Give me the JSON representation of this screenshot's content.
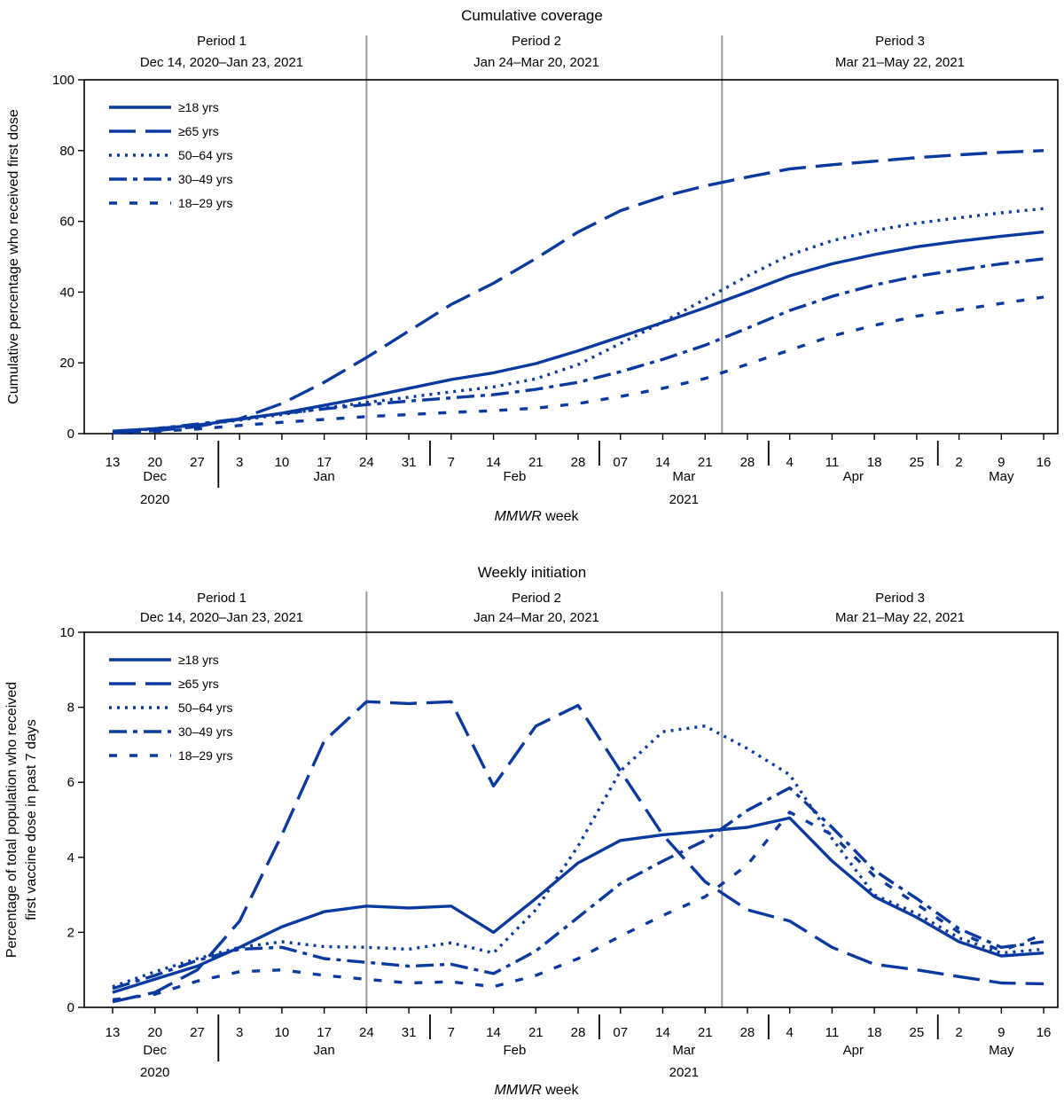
{
  "colors": {
    "series": "#0a3aa0",
    "axis": "#000000",
    "period_line": "#999999"
  },
  "periods": [
    {
      "name": "Period 1",
      "range": "Dec 14, 2020–Jan 23, 2021"
    },
    {
      "name": "Period 2",
      "range": "Jan 24–Mar 20, 2021"
    },
    {
      "name": "Period 3",
      "range": "Mar 21–May 22, 2021"
    }
  ],
  "xaxis": {
    "week_labels": [
      "13",
      "20",
      "27",
      "3",
      "10",
      "17",
      "24",
      "31",
      "7",
      "14",
      "21",
      "28",
      "07",
      "14",
      "21",
      "28",
      "4",
      "11",
      "18",
      "25",
      "2",
      "9",
      "16"
    ],
    "months": [
      {
        "label": "Dec",
        "first": 0,
        "last": 2
      },
      {
        "label": "Jan",
        "first": 3,
        "last": 7
      },
      {
        "label": "Feb",
        "first": 8,
        "last": 11
      },
      {
        "label": "Mar",
        "first": 12,
        "last": 15
      },
      {
        "label": "Apr",
        "first": 16,
        "last": 19
      },
      {
        "label": "May",
        "first": 20,
        "last": 22
      }
    ],
    "years": [
      {
        "label": "2020",
        "center": 1
      },
      {
        "label": "2021",
        "center": 13.5
      }
    ],
    "title_italic": "MMWR",
    "title_rest": " week"
  },
  "chart_data": [
    {
      "type": "line",
      "title": "Cumulative coverage",
      "ylabel": "Cumulative percentage who received first dose",
      "ylim": [
        0,
        100
      ],
      "yticks": [
        0,
        20,
        40,
        60,
        80,
        100
      ],
      "period_boundaries": [
        6,
        14.4
      ],
      "legend": "top-left",
      "series": [
        {
          "name": "≥18 yrs",
          "style": "solid",
          "values": [
            0.7,
            1.4,
            2.4,
            4.0,
            5.8,
            8.0,
            10.3,
            12.8,
            15.3,
            17.2,
            19.8,
            23.4,
            27.4,
            31.4,
            35.6,
            40.0,
            44.6,
            48.0,
            50.6,
            52.8,
            54.4,
            55.8,
            57.0
          ]
        },
        {
          "name": "≥65 yrs",
          "style": "dash",
          "values": [
            0.3,
            0.8,
            2.0,
            4.2,
            8.5,
            14.5,
            21.5,
            29.0,
            36.5,
            42.5,
            49.5,
            57.0,
            63.0,
            67.0,
            70.0,
            72.5,
            74.8,
            76.0,
            77.0,
            78.0,
            78.8,
            79.5,
            80.0
          ]
        },
        {
          "name": "50–64 yrs",
          "style": "dot",
          "values": [
            0.5,
            1.3,
            2.4,
            3.8,
            5.4,
            7.2,
            8.8,
            10.3,
            11.8,
            13.2,
            15.5,
            19.5,
            25.5,
            31.5,
            38.0,
            44.5,
            50.5,
            54.5,
            57.4,
            59.5,
            61.0,
            62.4,
            63.6
          ]
        },
        {
          "name": "30–49 yrs",
          "style": "dashdot",
          "values": [
            0.6,
            1.4,
            2.7,
            4.2,
            5.7,
            7.0,
            8.2,
            9.2,
            10.1,
            11.0,
            12.5,
            14.5,
            17.5,
            21.0,
            25.0,
            29.8,
            34.8,
            38.8,
            42.0,
            44.5,
            46.3,
            48.0,
            49.4
          ]
        },
        {
          "name": "18–29 yrs",
          "style": "sparsedot",
          "values": [
            0.2,
            0.6,
            1.3,
            2.3,
            3.2,
            4.0,
            4.8,
            5.4,
            6.0,
            6.5,
            7.2,
            8.5,
            10.5,
            12.8,
            15.6,
            19.6,
            23.6,
            27.6,
            30.6,
            33.2,
            35.0,
            36.8,
            38.6
          ]
        }
      ]
    },
    {
      "type": "line",
      "title": "Weekly initiation",
      "ylabel": "Percentage of total population who received first vaccine dose in past 7 days",
      "ylabel_lines": [
        "Percentage of total population who received",
        "first vaccine dose in past 7 days"
      ],
      "ylim": [
        0,
        10
      ],
      "yticks": [
        0,
        2,
        4,
        6,
        8,
        10
      ],
      "period_boundaries": [
        6,
        14.4
      ],
      "legend": "top-left",
      "series": [
        {
          "name": "≥18 yrs",
          "style": "solid",
          "values": [
            0.4,
            0.75,
            1.1,
            1.6,
            2.15,
            2.55,
            2.7,
            2.65,
            2.7,
            2.0,
            2.9,
            3.85,
            4.45,
            4.6,
            4.7,
            4.8,
            5.05,
            3.9,
            2.95,
            2.4,
            1.75,
            1.37,
            1.45
          ]
        },
        {
          "name": "≥65 yrs",
          "style": "dash",
          "values": [
            0.15,
            0.4,
            1.0,
            2.3,
            4.6,
            7.1,
            8.15,
            8.1,
            8.15,
            5.9,
            7.5,
            8.05,
            6.3,
            4.6,
            3.35,
            2.6,
            2.3,
            1.6,
            1.15,
            1.0,
            0.82,
            0.65,
            0.63
          ]
        },
        {
          "name": "50–64 yrs",
          "style": "dot",
          "values": [
            0.55,
            0.95,
            1.3,
            1.6,
            1.75,
            1.62,
            1.6,
            1.55,
            1.72,
            1.45,
            2.6,
            4.3,
            6.3,
            7.35,
            7.5,
            6.9,
            6.2,
            4.5,
            3.0,
            2.5,
            1.85,
            1.45,
            1.55
          ]
        },
        {
          "name": "30–49 yrs",
          "style": "dashdot",
          "values": [
            0.5,
            0.85,
            1.25,
            1.55,
            1.6,
            1.3,
            1.2,
            1.1,
            1.15,
            0.9,
            1.5,
            2.4,
            3.3,
            3.9,
            4.45,
            5.25,
            5.85,
            4.8,
            3.65,
            2.9,
            2.1,
            1.6,
            1.75
          ]
        },
        {
          "name": "18–29 yrs",
          "style": "sparsedot",
          "values": [
            0.2,
            0.35,
            0.7,
            0.95,
            1.0,
            0.85,
            0.75,
            0.65,
            0.68,
            0.55,
            0.85,
            1.3,
            1.9,
            2.45,
            2.95,
            3.8,
            5.2,
            4.6,
            3.5,
            2.75,
            2.0,
            1.5,
            1.95
          ]
        }
      ]
    }
  ]
}
